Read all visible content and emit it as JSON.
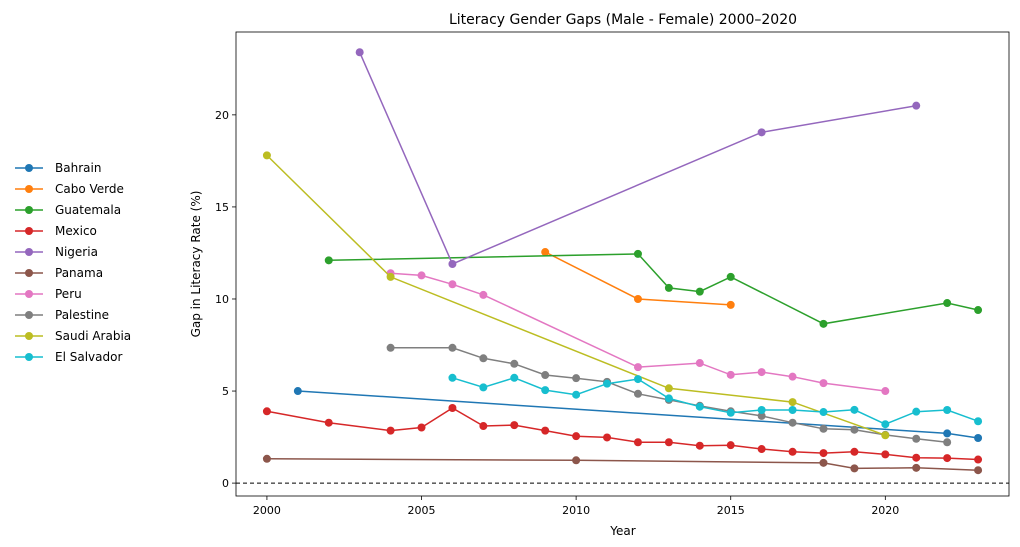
{
  "chart_data": {
    "type": "line",
    "title": "Literacy Gender Gaps (Male - Female) 2000–2020",
    "xlabel": "Year",
    "ylabel": "Gap in Literacy Rate (%)",
    "xlim": [
      1999,
      2024
    ],
    "ylim": [
      -0.7,
      24.5
    ],
    "xticks": [
      2000,
      2005,
      2010,
      2015,
      2020
    ],
    "yticks": [
      0,
      5,
      10,
      15,
      20
    ],
    "reference_line": {
      "y": 0,
      "style": "dashed",
      "color": "#000000"
    },
    "legend_position": "left-outside",
    "grid": false,
    "series": [
      {
        "name": "Bahrain",
        "color": "#1f77b4",
        "points": [
          [
            2001,
            5.0
          ],
          [
            2022,
            2.7
          ],
          [
            2023,
            2.45
          ]
        ]
      },
      {
        "name": "Cabo Verde",
        "color": "#ff7f0e",
        "points": [
          [
            2009,
            12.55
          ],
          [
            2012,
            10.0
          ],
          [
            2015,
            9.68
          ]
        ]
      },
      {
        "name": "Guatemala",
        "color": "#2ca02c",
        "points": [
          [
            2002,
            12.1
          ],
          [
            2012,
            12.45
          ],
          [
            2013,
            10.6
          ],
          [
            2014,
            10.4
          ],
          [
            2015,
            11.2
          ],
          [
            2018,
            8.65
          ],
          [
            2022,
            9.78
          ],
          [
            2023,
            9.4
          ]
        ]
      },
      {
        "name": "Mexico",
        "color": "#d62728",
        "points": [
          [
            2000,
            3.9
          ],
          [
            2002,
            3.28
          ],
          [
            2004,
            2.85
          ],
          [
            2005,
            3.02
          ],
          [
            2006,
            4.08
          ],
          [
            2007,
            3.1
          ],
          [
            2008,
            3.15
          ],
          [
            2009,
            2.85
          ],
          [
            2010,
            2.55
          ],
          [
            2011,
            2.48
          ],
          [
            2012,
            2.22
          ],
          [
            2013,
            2.22
          ],
          [
            2014,
            2.03
          ],
          [
            2015,
            2.06
          ],
          [
            2016,
            1.85
          ],
          [
            2017,
            1.7
          ],
          [
            2018,
            1.63
          ],
          [
            2019,
            1.7
          ],
          [
            2020,
            1.56
          ],
          [
            2021,
            1.38
          ],
          [
            2022,
            1.36
          ],
          [
            2023,
            1.28
          ]
        ]
      },
      {
        "name": "Nigeria",
        "color": "#9467bd",
        "points": [
          [
            2003,
            23.4
          ],
          [
            2006,
            11.9
          ],
          [
            2016,
            19.05
          ],
          [
            2021,
            20.5
          ]
        ]
      },
      {
        "name": "Panama",
        "color": "#8c564b",
        "points": [
          [
            2000,
            1.32
          ],
          [
            2010,
            1.24
          ],
          [
            2018,
            1.1
          ],
          [
            2019,
            0.8
          ],
          [
            2021,
            0.83
          ],
          [
            2023,
            0.7
          ]
        ]
      },
      {
        "name": "Peru",
        "color": "#e377c2",
        "points": [
          [
            2004,
            11.4
          ],
          [
            2005,
            11.28
          ],
          [
            2006,
            10.8
          ],
          [
            2007,
            10.22
          ],
          [
            2012,
            6.3
          ],
          [
            2014,
            6.52
          ],
          [
            2015,
            5.88
          ],
          [
            2016,
            6.03
          ],
          [
            2017,
            5.78
          ],
          [
            2018,
            5.43
          ],
          [
            2020,
            5.0
          ]
        ]
      },
      {
        "name": "Palestine",
        "color": "#7f7f7f",
        "points": [
          [
            2004,
            7.35
          ],
          [
            2006,
            7.35
          ],
          [
            2007,
            6.78
          ],
          [
            2008,
            6.48
          ],
          [
            2009,
            5.87
          ],
          [
            2010,
            5.7
          ],
          [
            2011,
            5.5
          ],
          [
            2012,
            4.85
          ],
          [
            2013,
            4.52
          ],
          [
            2014,
            4.2
          ],
          [
            2015,
            3.9
          ],
          [
            2016,
            3.65
          ],
          [
            2017,
            3.28
          ],
          [
            2018,
            2.95
          ],
          [
            2019,
            2.9
          ],
          [
            2020,
            2.62
          ],
          [
            2021,
            2.41
          ],
          [
            2022,
            2.22
          ]
        ]
      },
      {
        "name": "Saudi Arabia",
        "color": "#bcbd22",
        "points": [
          [
            2000,
            17.8
          ],
          [
            2004,
            11.2
          ],
          [
            2013,
            5.15
          ],
          [
            2017,
            4.4
          ],
          [
            2020,
            2.6
          ]
        ]
      },
      {
        "name": "El Salvador",
        "color": "#17becf",
        "points": [
          [
            2006,
            5.72
          ],
          [
            2007,
            5.2
          ],
          [
            2008,
            5.72
          ],
          [
            2009,
            5.05
          ],
          [
            2010,
            4.8
          ],
          [
            2011,
            5.4
          ],
          [
            2012,
            5.65
          ],
          [
            2013,
            4.6
          ],
          [
            2014,
            4.15
          ],
          [
            2015,
            3.82
          ],
          [
            2016,
            3.97
          ],
          [
            2017,
            3.97
          ],
          [
            2018,
            3.86
          ],
          [
            2019,
            3.98
          ],
          [
            2020,
            3.2
          ],
          [
            2021,
            3.88
          ],
          [
            2022,
            3.97
          ],
          [
            2023,
            3.36
          ]
        ]
      }
    ]
  }
}
